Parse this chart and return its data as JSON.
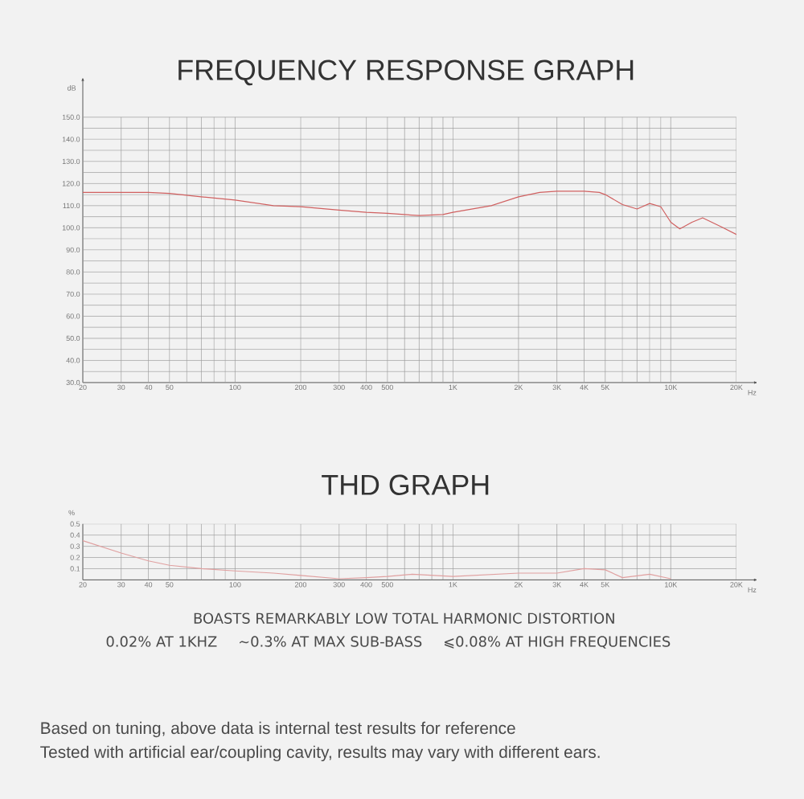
{
  "chart_data": [
    {
      "type": "line",
      "title": "FREQUENCY RESPONSE GRAPH",
      "xlabel": "Hz",
      "ylabel": "dB",
      "log": "x",
      "grid": true,
      "xlim": [
        20,
        20000
      ],
      "ylim": [
        30,
        168
      ],
      "xticks": [
        20,
        30,
        40,
        50,
        {
          "value": 60,
          "label": null
        },
        {
          "value": 70,
          "label": null
        },
        {
          "value": 80,
          "label": null
        },
        {
          "value": 90,
          "label": null
        },
        100,
        200,
        300,
        400,
        500,
        {
          "value": 600,
          "label": null
        },
        {
          "value": 700,
          "label": null
        },
        {
          "value": 800,
          "label": null
        },
        {
          "value": 900,
          "label": null
        },
        {
          "value": 1000,
          "label": "1K"
        },
        {
          "value": 2000,
          "label": "2K"
        },
        {
          "value": 3000,
          "label": "3K"
        },
        {
          "value": 4000,
          "label": "4K"
        },
        {
          "value": 5000,
          "label": "5K"
        },
        {
          "value": 6000,
          "label": null
        },
        {
          "value": 7000,
          "label": null
        },
        {
          "value": 8000,
          "label": null
        },
        {
          "value": 9000,
          "label": null
        },
        {
          "value": 10000,
          "label": "10K"
        },
        {
          "value": 20000,
          "label": "20K"
        }
      ],
      "yticks": [
        {
          "value": 30,
          "label": "30.0"
        },
        {
          "value": 35,
          "label": null
        },
        {
          "value": 40,
          "label": "40.0"
        },
        {
          "value": 45,
          "label": null
        },
        {
          "value": 50,
          "label": "50.0"
        },
        {
          "value": 55,
          "label": null
        },
        {
          "value": 60,
          "label": "60.0"
        },
        {
          "value": 65,
          "label": null
        },
        {
          "value": 70,
          "label": "70.0"
        },
        {
          "value": 75,
          "label": null
        },
        {
          "value": 80,
          "label": "80.0"
        },
        {
          "value": 85,
          "label": null
        },
        {
          "value": 90,
          "label": "90.0"
        },
        {
          "value": 95,
          "label": null
        },
        {
          "value": 100,
          "label": "100.0"
        },
        {
          "value": 105,
          "label": null
        },
        {
          "value": 110,
          "label": "110.0"
        },
        {
          "value": 115,
          "label": null
        },
        {
          "value": 120,
          "label": "120.0"
        },
        {
          "value": 125,
          "label": null
        },
        {
          "value": 130,
          "label": "130.0"
        },
        {
          "value": 135,
          "label": null
        },
        {
          "value": 140,
          "label": "140.0"
        },
        {
          "value": 145,
          "label": null
        },
        {
          "value": 150,
          "label": "150.0"
        }
      ],
      "x": [
        20,
        30,
        40,
        50,
        70,
        100,
        150,
        200,
        300,
        400,
        500,
        700,
        900,
        1000,
        1500,
        2000,
        2500,
        3000,
        4000,
        4700,
        5000,
        6000,
        7000,
        8000,
        9000,
        10000,
        11000,
        12500,
        14000,
        17000,
        20000
      ],
      "series": [
        {
          "color": "#d06060",
          "values": [
            116,
            116,
            116,
            115.5,
            114,
            112.5,
            110,
            109.5,
            108,
            107,
            106.5,
            105.5,
            106,
            107,
            110,
            114,
            116,
            116.5,
            116.5,
            116,
            115,
            110.5,
            108.5,
            111,
            109.5,
            102.5,
            99.5,
            102.5,
            104.5,
            100.5,
            97
          ]
        }
      ]
    },
    {
      "type": "line",
      "title": "THD GRAPH",
      "xlabel": "Hz",
      "ylabel": "%",
      "log": "x",
      "grid": true,
      "xlim": [
        20,
        20000
      ],
      "ylim": [
        0,
        0.5
      ],
      "xticks": [
        20,
        30,
        40,
        50,
        {
          "value": 60,
          "label": null
        },
        {
          "value": 70,
          "label": null
        },
        {
          "value": 80,
          "label": null
        },
        {
          "value": 90,
          "label": null
        },
        100,
        200,
        300,
        400,
        500,
        {
          "value": 600,
          "label": null
        },
        {
          "value": 700,
          "label": null
        },
        {
          "value": 800,
          "label": null
        },
        {
          "value": 900,
          "label": null
        },
        {
          "value": 1000,
          "label": "1K"
        },
        {
          "value": 2000,
          "label": "2K"
        },
        {
          "value": 3000,
          "label": "3K"
        },
        {
          "value": 4000,
          "label": "4K"
        },
        {
          "value": 5000,
          "label": "5K"
        },
        {
          "value": 6000,
          "label": null
        },
        {
          "value": 7000,
          "label": null
        },
        {
          "value": 8000,
          "label": null
        },
        {
          "value": 9000,
          "label": null
        },
        {
          "value": 10000,
          "label": "10K"
        },
        {
          "value": 20000,
          "label": "20K"
        }
      ],
      "yticks": [
        0.1,
        0.2,
        0.3,
        0.4,
        0.5
      ],
      "x": [
        20,
        30,
        40,
        50,
        70,
        100,
        150,
        200,
        300,
        400,
        500,
        650,
        1000,
        2000,
        3000,
        4000,
        5000,
        6000,
        8000,
        10000
      ],
      "series": [
        {
          "color": "#e0a0a0",
          "values": [
            0.35,
            0.24,
            0.17,
            0.13,
            0.1,
            0.08,
            0.06,
            0.04,
            0.01,
            0.02,
            0.03,
            0.05,
            0.03,
            0.06,
            0.06,
            0.1,
            0.09,
            0.02,
            0.05,
            0.01
          ]
        }
      ],
      "annotations": [
        "BOASTS REMARKABLY LOW TOTAL HARMONIC DISTORTION",
        "0.02% AT 1KHZ",
        "~0.3% AT MAX SUB-BASS",
        "⩽0.08% AT HIGH FREQUENCIES",
        "Based on tuning, above data is internal test results for reference",
        "Tested with artificial ear/coupling cavity, results may vary with different ears."
      ]
    }
  ]
}
